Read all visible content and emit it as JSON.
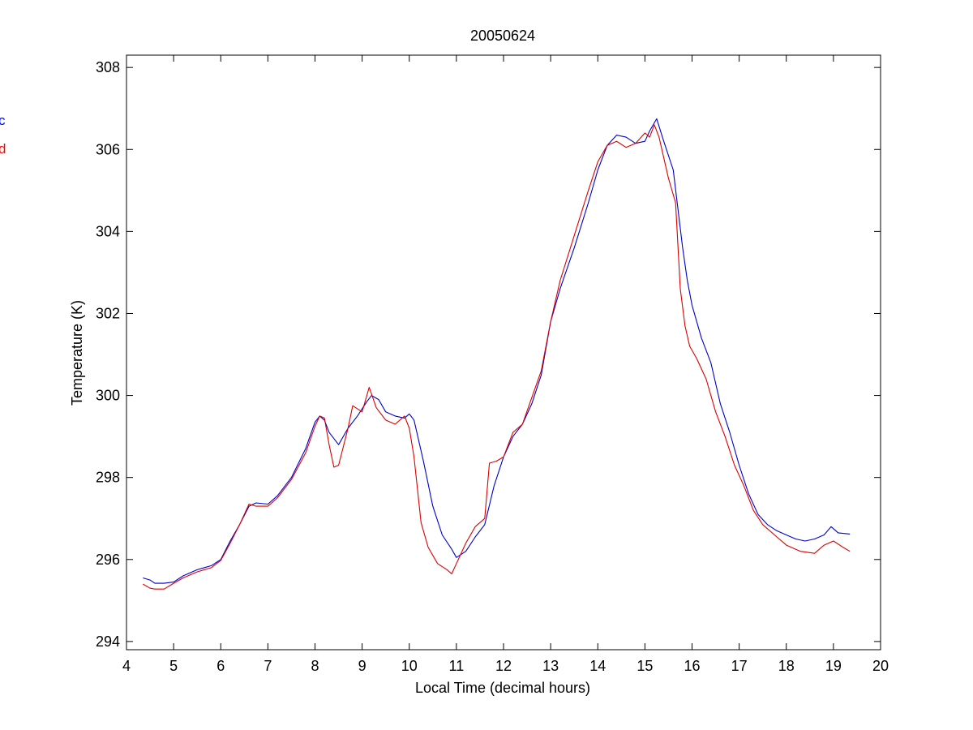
{
  "chart_data": {
    "type": "line",
    "title": "20050624",
    "xlabel": "Local Time (decimal hours)",
    "ylabel": "Temperature (K)",
    "xlim": [
      4,
      20
    ],
    "ylim": [
      293.8,
      308.3
    ],
    "xticks": [
      "4",
      "5",
      "6",
      "7",
      "8",
      "9",
      "10",
      "11",
      "12",
      "13",
      "14",
      "15",
      "16",
      "17",
      "18",
      "19",
      "20"
    ],
    "yticks": [
      "294",
      "296",
      "298",
      "300",
      "302",
      "304",
      "306",
      "308"
    ],
    "grid": false,
    "legend": {
      "placement": "left-edge-clipped",
      "entries": [
        {
          "text": "c",
          "color": "#0000ff"
        },
        {
          "text": "d",
          "color": "#ff0000"
        }
      ]
    },
    "series": [
      {
        "color": "#0000cc",
        "x": [
          4.35,
          4.5,
          4.6,
          4.8,
          5.0,
          5.2,
          5.5,
          5.8,
          6.0,
          6.2,
          6.4,
          6.6,
          6.75,
          7.0,
          7.2,
          7.5,
          7.8,
          8.0,
          8.1,
          8.2,
          8.3,
          8.5,
          8.7,
          8.9,
          9.1,
          9.2,
          9.35,
          9.5,
          9.7,
          9.9,
          10.0,
          10.1,
          10.3,
          10.5,
          10.7,
          10.9,
          11.0,
          11.2,
          11.4,
          11.6,
          11.8,
          12.0,
          12.2,
          12.4,
          12.6,
          12.8,
          13.0,
          13.2,
          13.5,
          13.8,
          14.0,
          14.2,
          14.4,
          14.6,
          14.8,
          15.0,
          15.1,
          15.25,
          15.4,
          15.6,
          15.8,
          15.9,
          16.0,
          16.2,
          16.4,
          16.6,
          16.8,
          17.0,
          17.2,
          17.4,
          17.6,
          17.8,
          18.0,
          18.2,
          18.4,
          18.6,
          18.8,
          18.95,
          19.1,
          19.35
        ],
        "y": [
          295.55,
          295.5,
          295.42,
          295.42,
          295.45,
          295.6,
          295.75,
          295.85,
          296.0,
          296.45,
          296.85,
          297.3,
          297.38,
          297.35,
          297.55,
          298.0,
          298.7,
          299.35,
          299.5,
          299.4,
          299.1,
          298.8,
          299.2,
          299.5,
          299.85,
          300.0,
          299.9,
          299.6,
          299.5,
          299.45,
          299.55,
          299.4,
          298.4,
          297.3,
          296.6,
          296.25,
          296.05,
          296.2,
          296.55,
          296.85,
          297.8,
          298.5,
          299.0,
          299.3,
          299.8,
          300.5,
          301.8,
          302.6,
          303.6,
          304.7,
          305.5,
          306.1,
          306.35,
          306.3,
          306.15,
          306.2,
          306.45,
          306.75,
          306.2,
          305.5,
          303.6,
          302.8,
          302.2,
          301.4,
          300.8,
          299.8,
          299.1,
          298.3,
          297.6,
          297.1,
          296.85,
          296.7,
          296.6,
          296.5,
          296.45,
          296.5,
          296.6,
          296.8,
          296.65,
          296.62
        ]
      },
      {
        "color": "#dd0000",
        "x": [
          4.35,
          4.5,
          4.6,
          4.8,
          5.0,
          5.2,
          5.5,
          5.8,
          6.0,
          6.2,
          6.4,
          6.6,
          6.75,
          7.0,
          7.2,
          7.5,
          7.8,
          8.0,
          8.1,
          8.2,
          8.3,
          8.4,
          8.5,
          8.7,
          8.8,
          9.0,
          9.15,
          9.3,
          9.5,
          9.7,
          9.9,
          10.0,
          10.1,
          10.25,
          10.4,
          10.6,
          10.8,
          10.9,
          11.0,
          11.2,
          11.4,
          11.6,
          11.7,
          11.85,
          12.0,
          12.2,
          12.4,
          12.6,
          12.8,
          13.0,
          13.2,
          13.5,
          13.8,
          14.0,
          14.2,
          14.4,
          14.6,
          14.8,
          15.0,
          15.1,
          15.2,
          15.3,
          15.5,
          15.65,
          15.75,
          15.85,
          15.95,
          16.1,
          16.3,
          16.5,
          16.7,
          16.9,
          17.1,
          17.3,
          17.5,
          17.8,
          18.0,
          18.3,
          18.6,
          18.8,
          19.0,
          19.2,
          19.35
        ],
        "y": [
          295.4,
          295.3,
          295.28,
          295.28,
          295.42,
          295.55,
          295.7,
          295.8,
          295.98,
          296.4,
          296.85,
          297.35,
          297.3,
          297.3,
          297.5,
          297.95,
          298.6,
          299.25,
          299.5,
          299.45,
          298.8,
          298.25,
          298.3,
          299.2,
          299.75,
          299.6,
          300.2,
          299.7,
          299.4,
          299.3,
          299.5,
          299.2,
          298.5,
          296.9,
          296.3,
          295.9,
          295.75,
          295.65,
          295.9,
          296.4,
          296.8,
          297.0,
          298.35,
          298.4,
          298.5,
          299.1,
          299.3,
          299.95,
          300.6,
          301.8,
          302.8,
          303.9,
          305.0,
          305.7,
          306.1,
          306.2,
          306.05,
          306.15,
          306.4,
          306.3,
          306.6,
          306.3,
          305.3,
          304.7,
          302.6,
          301.7,
          301.2,
          300.9,
          300.4,
          299.6,
          299.0,
          298.3,
          297.8,
          297.2,
          296.85,
          296.55,
          296.35,
          296.2,
          296.15,
          296.35,
          296.45,
          296.3,
          296.2
        ]
      }
    ]
  }
}
